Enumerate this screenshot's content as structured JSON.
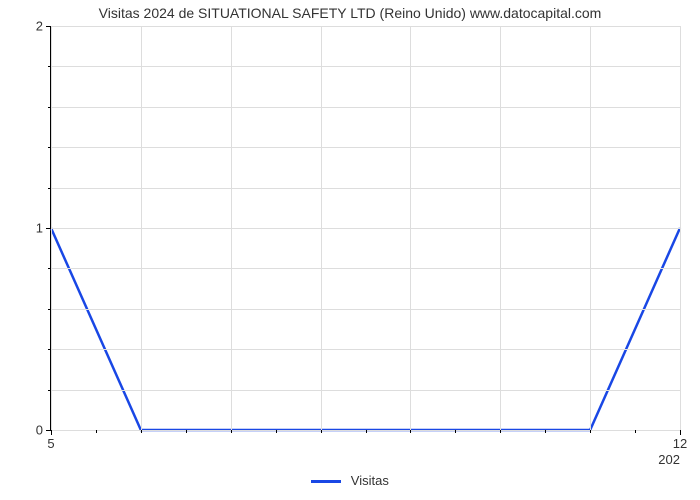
{
  "chart": {
    "type": "line",
    "title": "Visitas 2024 de SITUATIONAL SAFETY LTD (Reino Unido) www.datocapital.com",
    "title_fontsize": 14,
    "title_color": "#333333",
    "background_color": "#ffffff",
    "grid_color": "#dddddd",
    "axis_color": "#000000",
    "line_color": "#1947e5",
    "line_width": 2.5,
    "y": {
      "min": 0,
      "max": 2,
      "major_ticks": [
        0,
        1,
        2
      ],
      "minor_tick_count_between": 4,
      "label_fontsize": 13
    },
    "x": {
      "min": 5,
      "max": 12,
      "left_label": "5",
      "right_label": "12",
      "secondary_label": "202",
      "minor_ticks": [
        5.5,
        6,
        6.5,
        7,
        7.5,
        8,
        8.5,
        9,
        9.5,
        10,
        10.5,
        11,
        11.5
      ],
      "label_fontsize": 13
    },
    "data": {
      "x": [
        5,
        6,
        7,
        8,
        9,
        10,
        11,
        12
      ],
      "y": [
        1,
        0,
        0,
        0,
        0,
        0,
        0,
        1
      ]
    },
    "legend": {
      "label": "Visitas",
      "color": "#1947e5"
    }
  }
}
